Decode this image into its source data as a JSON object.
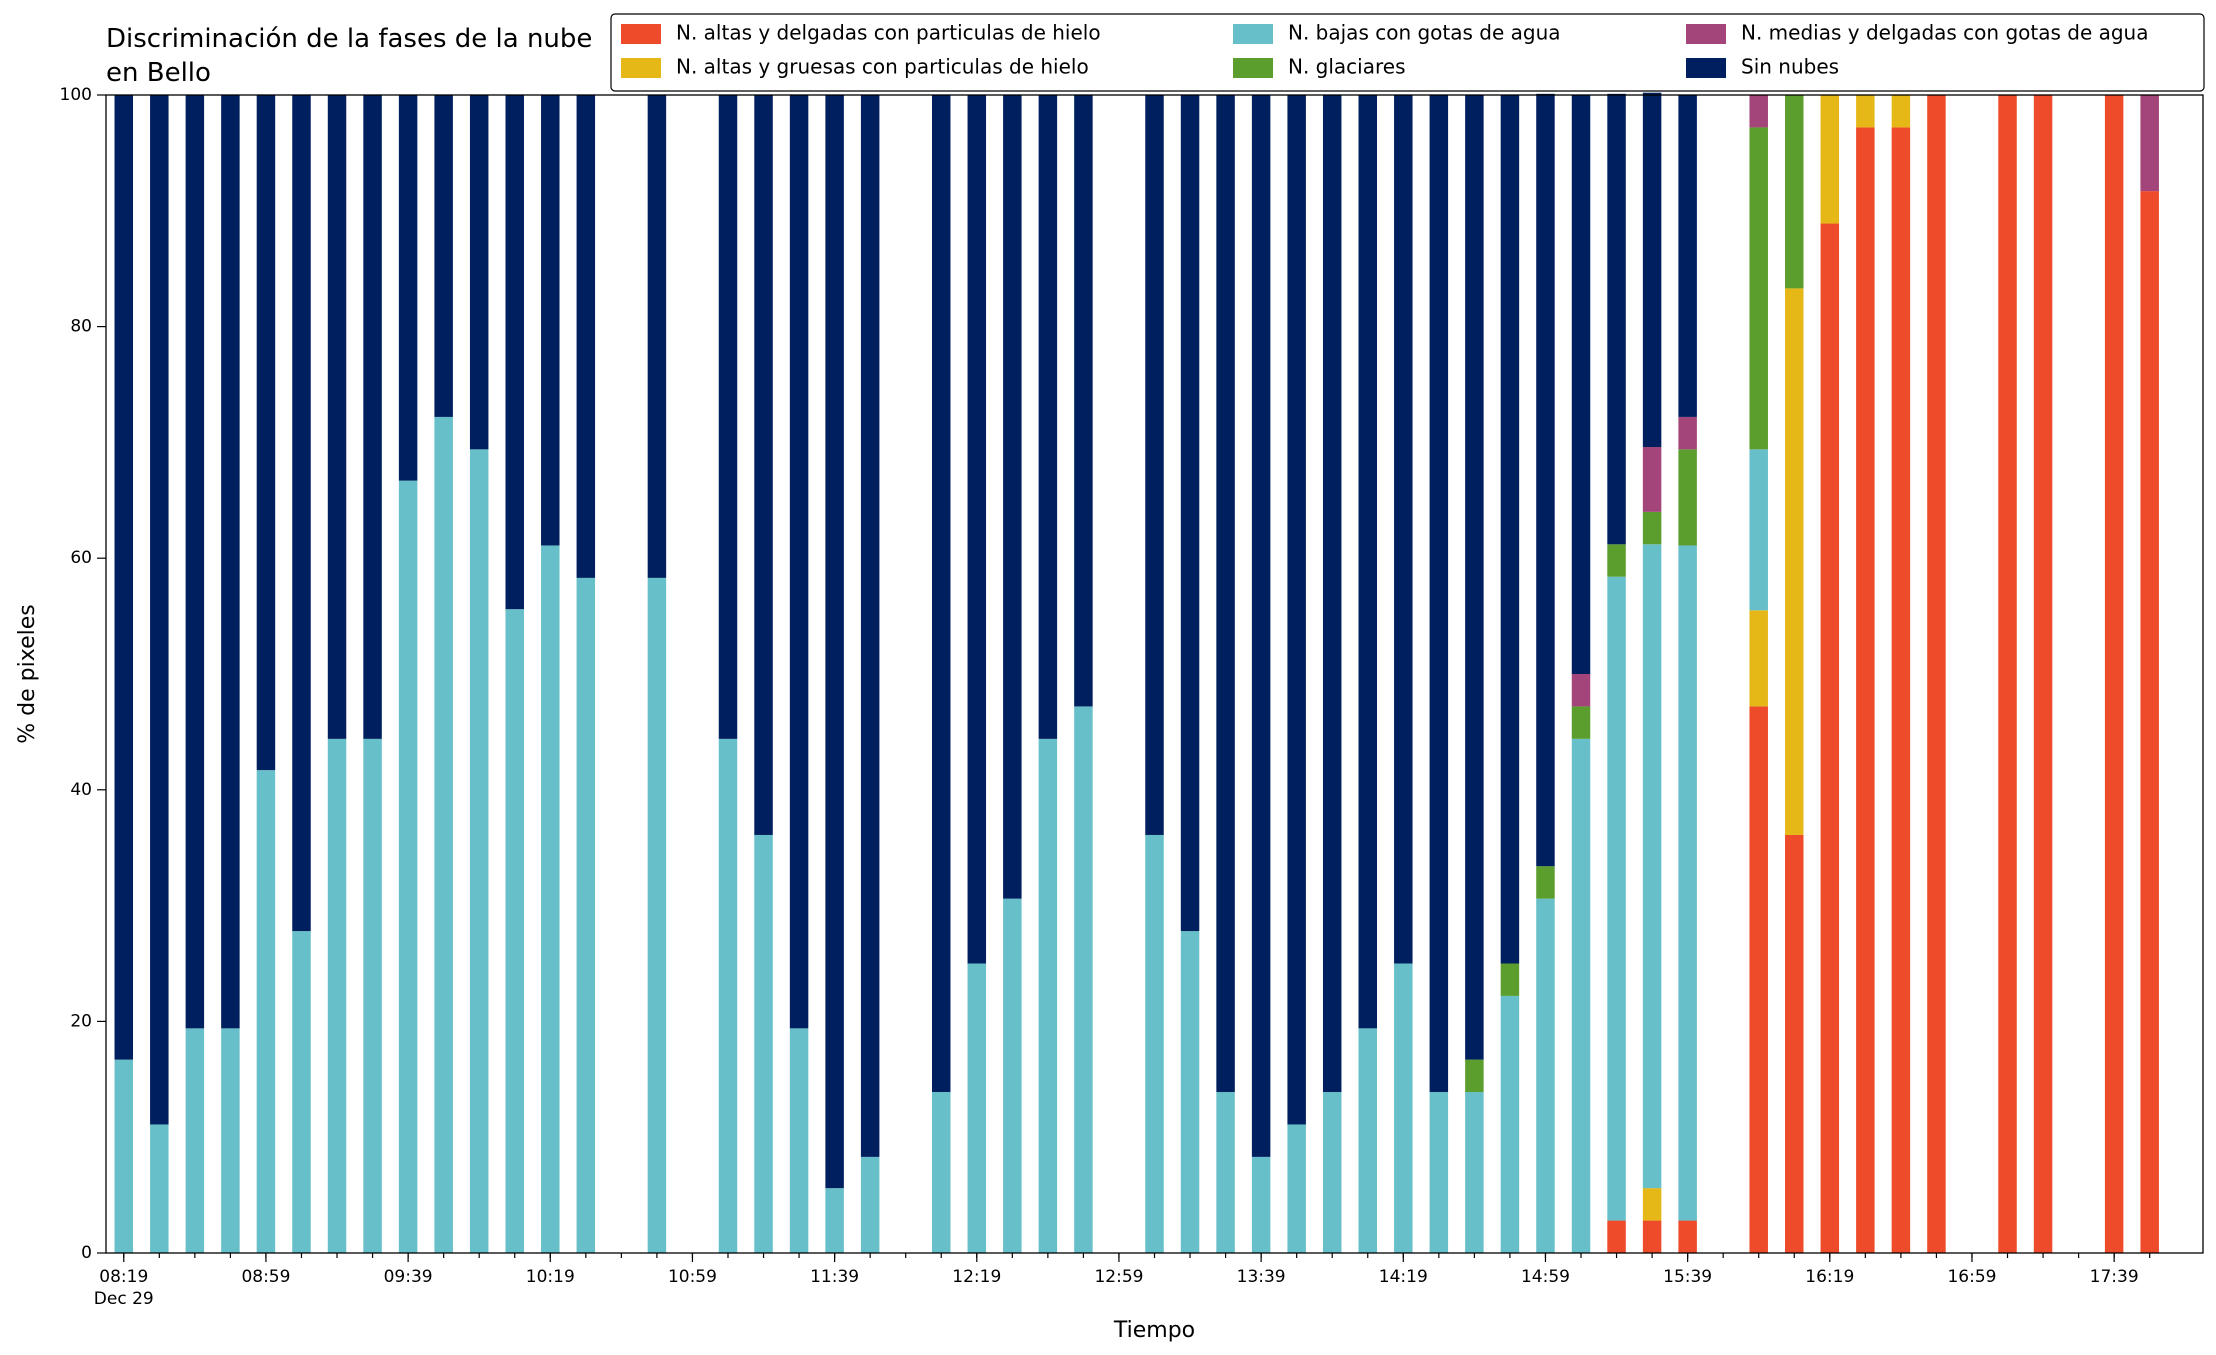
{
  "chart_data": {
    "type": "stacked_bar",
    "title": "Discriminación de la fases de la nube en Bello",
    "xlabel": "Tiempo",
    "ylabel": "% de pixeles",
    "x": [
      "08:19",
      "08:29",
      "08:39",
      "08:49",
      "08:59",
      "09:09",
      "09:19",
      "09:29",
      "09:39",
      "09:49",
      "09:59",
      "10:09",
      "10:19",
      "10:29",
      "10:39",
      "10:49",
      "10:59",
      "11:09",
      "11:19",
      "11:29",
      "11:39",
      "11:49",
      "11:59",
      "12:09",
      "12:19",
      "12:29",
      "12:39",
      "12:49",
      "12:59",
      "13:09",
      "13:19",
      "13:29",
      "13:39",
      "13:49",
      "13:59",
      "14:09",
      "14:19",
      "14:29",
      "14:39",
      "14:49",
      "14:59",
      "15:09",
      "15:19",
      "15:29",
      "15:39",
      "15:49",
      "15:59",
      "16:09",
      "16:19",
      "16:29",
      "16:39",
      "16:49",
      "16:59",
      "17:09",
      "17:19",
      "17:29",
      "17:39",
      "17:49"
    ],
    "xlim": [
      "08:14",
      "18:04"
    ],
    "xticks": [
      "08:19",
      "08:59",
      "09:39",
      "10:19",
      "10:59",
      "11:39",
      "12:19",
      "12:59",
      "13:39",
      "14:19",
      "14:59",
      "15:39",
      "16:19",
      "16:59",
      "17:39"
    ],
    "xtick_sublabel": "Dec 29",
    "ylim": [
      0,
      100
    ],
    "yticks": [
      0,
      20,
      40,
      60,
      80,
      100
    ],
    "legend": "upper right",
    "series": [
      {
        "name": "N. altas y delgadas con particulas de hielo",
        "color": "#ee4b2b",
        "values": [
          0,
          0,
          0,
          0,
          0,
          0,
          0,
          0,
          0,
          0,
          0,
          0,
          0,
          0,
          null,
          0,
          null,
          0,
          0,
          0,
          0,
          0,
          null,
          0,
          0,
          0,
          0,
          0,
          null,
          0,
          0,
          0,
          0,
          0,
          0,
          0,
          0,
          0,
          0,
          0,
          0,
          0,
          2.8,
          2.8,
          2.8,
          null,
          47.2,
          36.1,
          88.9,
          97.2,
          97.2,
          100,
          null,
          100,
          100,
          null,
          100,
          91.7
        ]
      },
      {
        "name": "N. altas y gruesas con particulas de hielo",
        "color": "#e6b817",
        "values": [
          0,
          0,
          0,
          0,
          0,
          0,
          0,
          0,
          0,
          0,
          0,
          0,
          0,
          0,
          null,
          0,
          null,
          0,
          0,
          0,
          0,
          0,
          null,
          0,
          0,
          0,
          0,
          0,
          null,
          0,
          0,
          0,
          0,
          0,
          0,
          0,
          0,
          0,
          0,
          0,
          0,
          0,
          0,
          2.8,
          0,
          null,
          8.3,
          47.2,
          11.1,
          2.8,
          2.8,
          0,
          null,
          0,
          0,
          null,
          0,
          0
        ]
      },
      {
        "name": "N. bajas con gotas de agua",
        "color": "#67bfc9",
        "values": [
          16.7,
          11.1,
          19.4,
          19.4,
          41.7,
          27.8,
          44.4,
          44.4,
          66.7,
          72.2,
          69.4,
          55.6,
          61.1,
          58.3,
          null,
          58.3,
          null,
          44.4,
          36.1,
          19.4,
          5.6,
          8.3,
          null,
          13.9,
          25,
          30.6,
          44.4,
          47.2,
          null,
          36.1,
          27.8,
          13.9,
          8.3,
          11.1,
          13.9,
          19.4,
          25,
          13.9,
          13.9,
          22.2,
          30.6,
          44.4,
          55.6,
          55.6,
          58.3,
          null,
          13.9,
          0,
          0,
          0,
          0,
          0,
          null,
          0,
          0,
          null,
          0,
          0
        ]
      },
      {
        "name": "N. glaciares",
        "color": "#5c9e2d",
        "values": [
          0,
          0,
          0,
          0,
          0,
          0,
          0,
          0,
          0,
          0,
          0,
          0,
          0,
          0,
          null,
          0,
          null,
          0,
          0,
          0,
          0,
          0,
          null,
          0,
          0,
          0,
          0,
          0,
          null,
          0,
          0,
          0,
          0,
          0,
          0,
          0,
          0,
          0,
          2.8,
          2.8,
          2.8,
          2.8,
          2.8,
          2.8,
          8.3,
          null,
          27.8,
          16.7,
          0,
          0,
          0,
          0,
          null,
          0,
          0,
          null,
          0,
          0
        ]
      },
      {
        "name": "N. medias y delgadas con gotas de agua",
        "color": "#a3447a",
        "values": [
          0,
          0,
          0,
          0,
          0,
          0,
          0,
          0,
          0,
          0,
          0,
          0,
          0,
          0,
          null,
          0,
          null,
          0,
          0,
          0,
          0,
          0,
          null,
          0,
          0,
          0,
          0,
          0,
          null,
          0,
          0,
          0,
          0,
          0,
          0,
          0,
          0,
          0,
          0,
          0,
          0,
          2.8,
          0,
          5.6,
          2.8,
          null,
          2.8,
          0,
          0,
          0,
          0,
          0,
          null,
          0,
          0,
          null,
          0,
          8.3
        ]
      },
      {
        "name": "Sin nubes",
        "color": "#001f5f",
        "values": [
          83.3,
          88.9,
          80.6,
          80.6,
          58.3,
          72.2,
          55.6,
          55.6,
          33.3,
          27.8,
          30.6,
          44.4,
          38.9,
          41.7,
          null,
          41.7,
          null,
          55.6,
          63.9,
          80.6,
          94.4,
          91.7,
          null,
          86.1,
          75,
          69.4,
          55.6,
          52.8,
          null,
          63.9,
          72.2,
          86.1,
          91.7,
          88.9,
          86.1,
          80.6,
          75,
          86.1,
          83.3,
          75,
          66.7,
          50,
          38.9,
          30.6,
          27.8,
          null,
          0,
          0,
          0,
          0,
          0,
          0,
          null,
          0,
          0,
          null,
          0,
          0
        ]
      }
    ]
  }
}
